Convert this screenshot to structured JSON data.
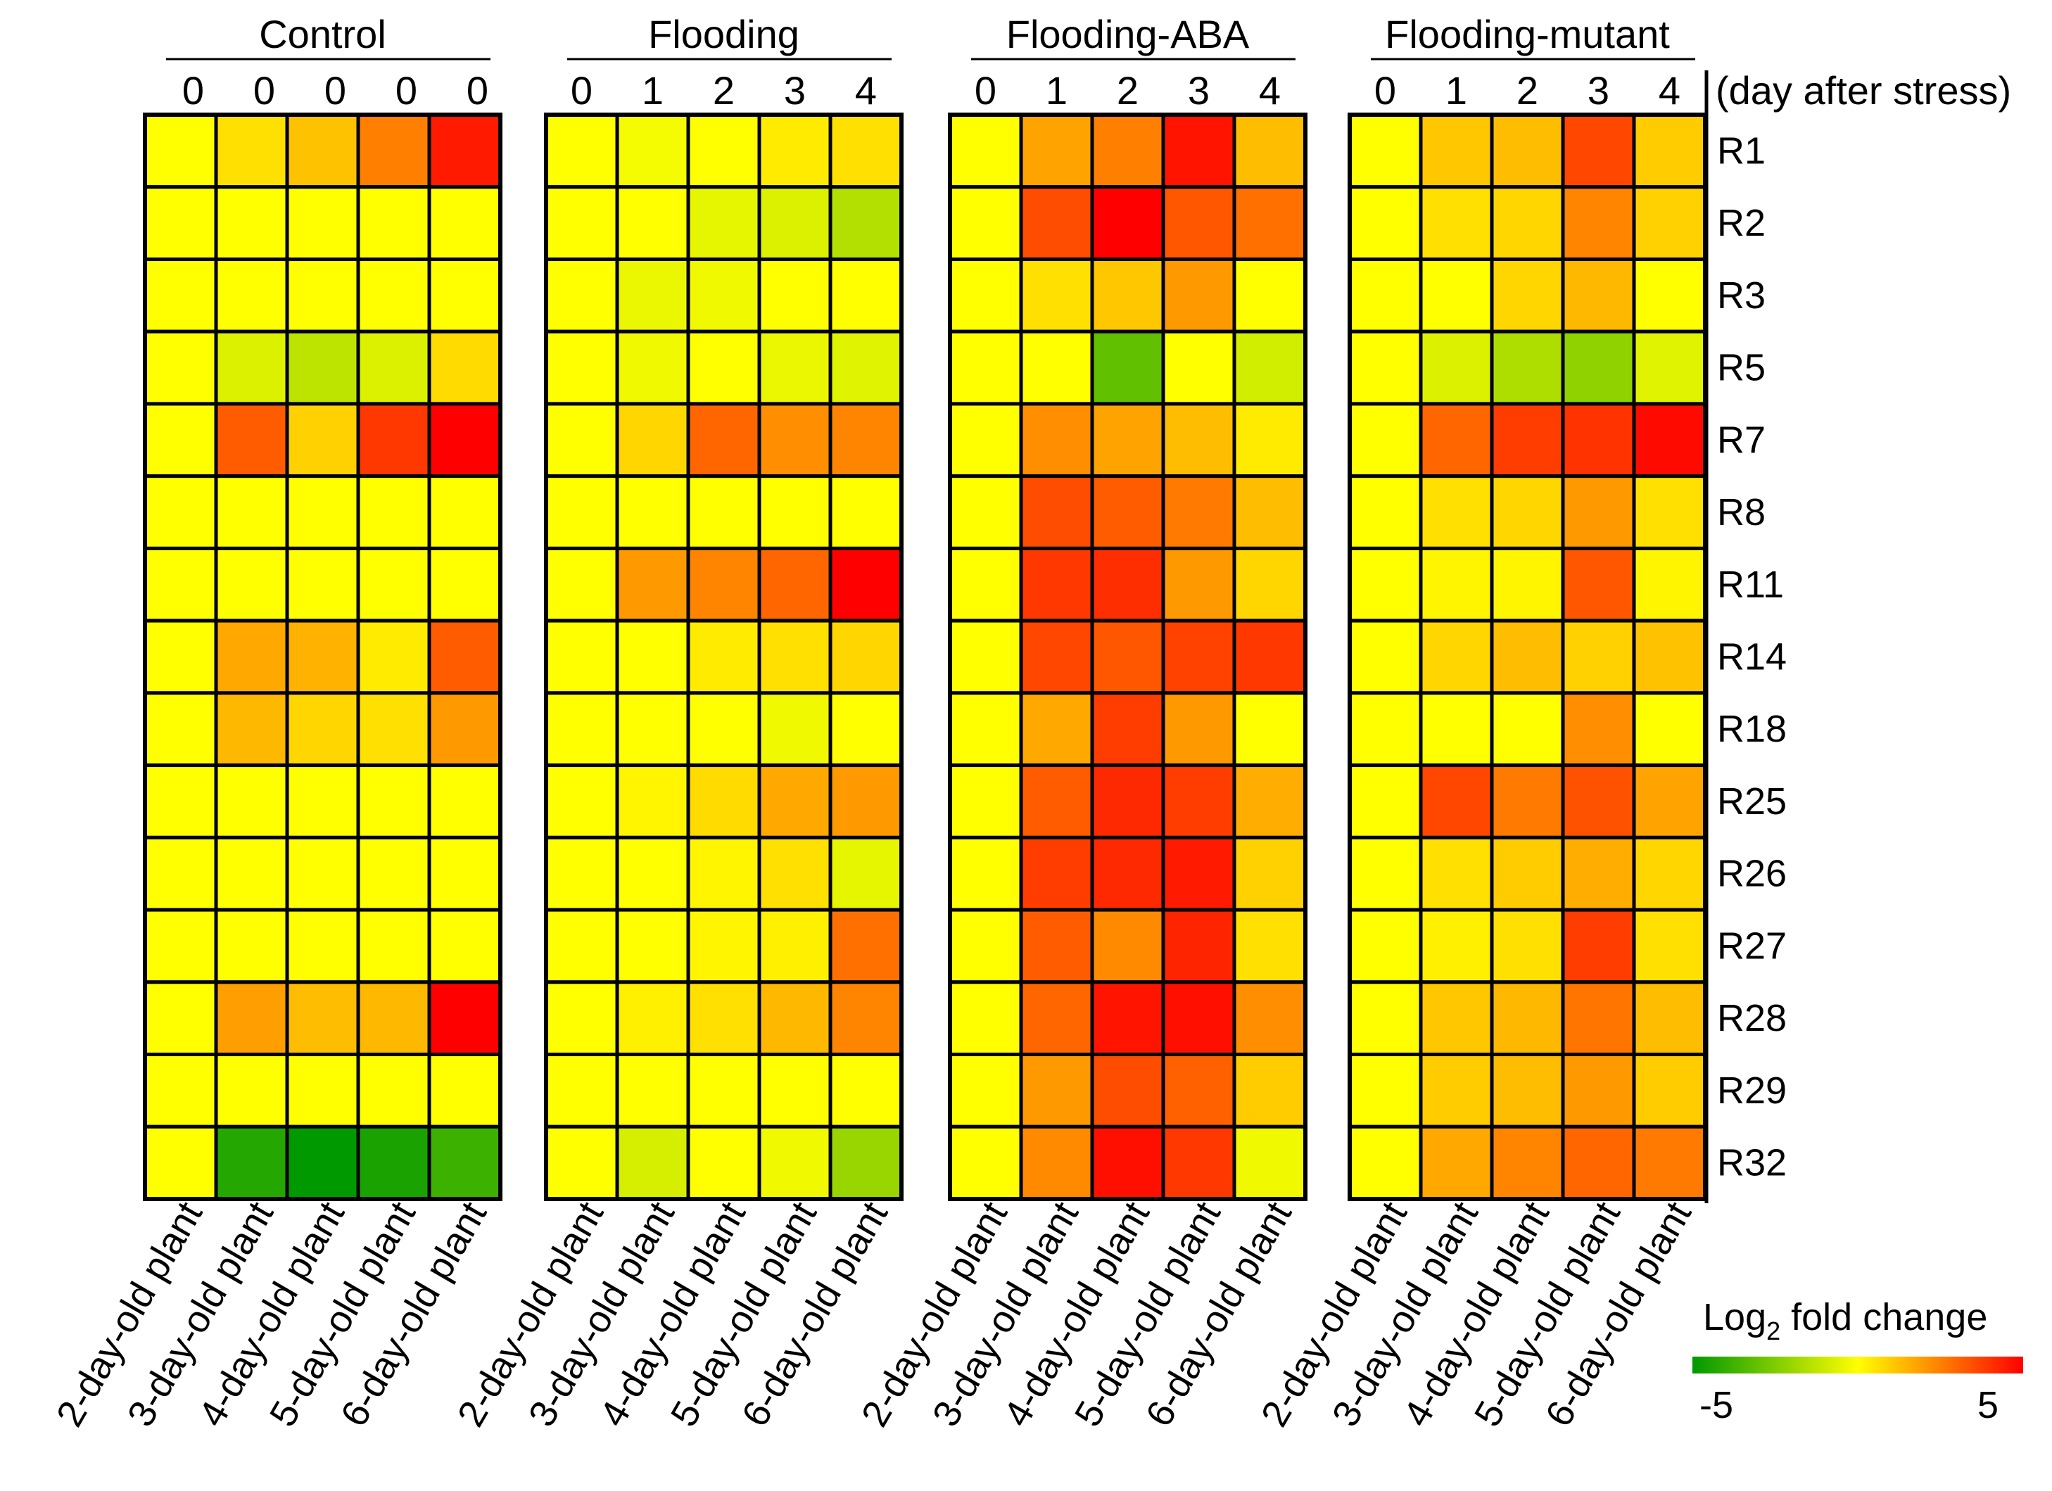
{
  "chart_data": {
    "type": "heatmap",
    "panels": [
      {
        "title": "Control",
        "days": [
          "0",
          "0",
          "0",
          "0",
          "0"
        ],
        "values": [
          [
            0.0,
            0.6,
            1.2,
            2.5,
            4.5
          ],
          [
            0.0,
            0.0,
            0.0,
            0.0,
            0.0
          ],
          [
            0.0,
            0.0,
            0.0,
            0.0,
            0.0
          ],
          [
            0.0,
            -0.7,
            -1.3,
            -0.7,
            0.7
          ],
          [
            0.0,
            3.2,
            0.9,
            3.9,
            5.0
          ],
          [
            0.0,
            0.0,
            0.0,
            0.0,
            0.0
          ],
          [
            0.0,
            0.0,
            0.0,
            0.0,
            0.0
          ],
          [
            0.0,
            1.7,
            1.5,
            0.4,
            3.2
          ],
          [
            0.0,
            1.4,
            0.8,
            0.6,
            2.0
          ],
          [
            0.0,
            0.0,
            0.0,
            0.0,
            0.0
          ],
          [
            0.0,
            0.0,
            0.0,
            0.0,
            0.0
          ],
          [
            0.0,
            0.0,
            0.0,
            0.0,
            0.0
          ],
          [
            0.0,
            1.9,
            1.3,
            1.4,
            5.4
          ],
          [
            0.0,
            0.0,
            0.0,
            0.0,
            0.0
          ],
          [
            0.0,
            -4.3,
            -5.0,
            -4.5,
            -3.8
          ]
        ]
      },
      {
        "title": "Flooding",
        "days": [
          "0",
          "1",
          "2",
          "3",
          "4"
        ],
        "values": [
          [
            0.0,
            -0.2,
            0.0,
            0.4,
            0.6
          ],
          [
            0.0,
            0.0,
            -0.5,
            -0.7,
            -1.5
          ],
          [
            0.0,
            -0.4,
            -0.3,
            0.0,
            0.0
          ],
          [
            0.0,
            -0.3,
            0.0,
            -0.4,
            -0.6
          ],
          [
            0.0,
            0.8,
            3.0,
            2.2,
            2.4
          ],
          [
            0.0,
            0.0,
            0.0,
            0.0,
            0.0
          ],
          [
            0.0,
            2.0,
            2.4,
            3.0,
            5.0
          ],
          [
            0.0,
            0.0,
            0.4,
            0.6,
            0.8
          ],
          [
            0.0,
            0.0,
            0.0,
            -0.3,
            0.0
          ],
          [
            0.0,
            0.2,
            0.7,
            1.7,
            2.0
          ],
          [
            0.0,
            0.0,
            0.2,
            0.6,
            -0.5
          ],
          [
            0.0,
            0.0,
            0.2,
            0.3,
            2.8
          ],
          [
            0.0,
            0.3,
            0.6,
            1.4,
            2.4
          ],
          [
            0.0,
            0.0,
            0.0,
            0.0,
            0.0
          ],
          [
            0.0,
            -0.8,
            0.0,
            -0.3,
            -2.0
          ]
        ]
      },
      {
        "title": "Flooding-ABA",
        "days": [
          "0",
          "1",
          "2",
          "3",
          "4"
        ],
        "values": [
          [
            0.0,
            1.8,
            2.5,
            4.6,
            1.3
          ],
          [
            0.0,
            3.5,
            5.6,
            3.3,
            2.8
          ],
          [
            0.0,
            0.6,
            1.1,
            2.0,
            0.0
          ],
          [
            0.0,
            0.0,
            -3.1,
            0.0,
            -0.9
          ],
          [
            0.0,
            2.2,
            1.8,
            1.3,
            0.4
          ],
          [
            0.0,
            3.5,
            3.2,
            2.6,
            1.3
          ],
          [
            0.0,
            3.9,
            4.1,
            2.0,
            0.8
          ],
          [
            0.0,
            3.6,
            3.3,
            3.7,
            3.9
          ],
          [
            0.0,
            1.7,
            3.8,
            2.0,
            0.0
          ],
          [
            0.0,
            3.2,
            4.2,
            3.8,
            1.6
          ],
          [
            0.0,
            3.8,
            4.2,
            4.5,
            0.9
          ],
          [
            0.0,
            3.2,
            2.3,
            4.3,
            0.6
          ],
          [
            0.0,
            3.0,
            4.6,
            4.7,
            2.2
          ],
          [
            0.0,
            2.0,
            3.5,
            3.1,
            1.0
          ],
          [
            0.0,
            2.3,
            4.7,
            3.9,
            -0.3
          ]
        ]
      },
      {
        "title": "Flooding-mutant",
        "days": [
          "0",
          "1",
          "2",
          "3",
          "4"
        ],
        "values": [
          [
            0.0,
            1.1,
            1.3,
            3.6,
            1.0
          ],
          [
            0.0,
            0.6,
            0.8,
            2.4,
            0.9
          ],
          [
            0.0,
            0.0,
            0.8,
            1.4,
            0.0
          ],
          [
            0.0,
            -0.7,
            -1.6,
            -2.2,
            -0.6
          ],
          [
            0.0,
            3.0,
            3.8,
            4.0,
            4.8
          ],
          [
            0.0,
            0.6,
            0.8,
            2.0,
            0.6
          ],
          [
            0.0,
            0.2,
            0.2,
            3.3,
            0.2
          ],
          [
            0.0,
            0.8,
            1.3,
            0.9,
            1.2
          ],
          [
            0.0,
            0.0,
            0.0,
            2.2,
            0.0
          ],
          [
            0.0,
            3.6,
            2.6,
            3.4,
            1.8
          ],
          [
            0.0,
            0.6,
            1.0,
            1.6,
            0.8
          ],
          [
            0.0,
            0.3,
            0.6,
            3.8,
            0.6
          ],
          [
            0.0,
            1.1,
            1.4,
            2.7,
            1.3
          ],
          [
            0.0,
            1.0,
            1.3,
            2.0,
            1.0
          ],
          [
            0.0,
            1.7,
            2.4,
            3.0,
            2.6
          ]
        ]
      }
    ],
    "day_axis_label": "(day after stress)",
    "rows": [
      "R1",
      "R2",
      "R3",
      "R5",
      "R7",
      "R8",
      "R11",
      "R14",
      "R18",
      "R25",
      "R26",
      "R27",
      "R28",
      "R29",
      "R32"
    ],
    "columns": [
      "2-day-old plant",
      "3-day-old plant",
      "4-day-old plant",
      "5-day-old plant",
      "6-day-old plant"
    ],
    "legend": {
      "title_prefix": "Log",
      "title_subscript": "2",
      "title_suffix": " fold change",
      "min": -5,
      "max": 5,
      "min_label": "-5",
      "max_label": "5",
      "colors": [
        "#009900",
        "#ffff00",
        "#ff0000"
      ],
      "placement": "bottom-right"
    }
  }
}
